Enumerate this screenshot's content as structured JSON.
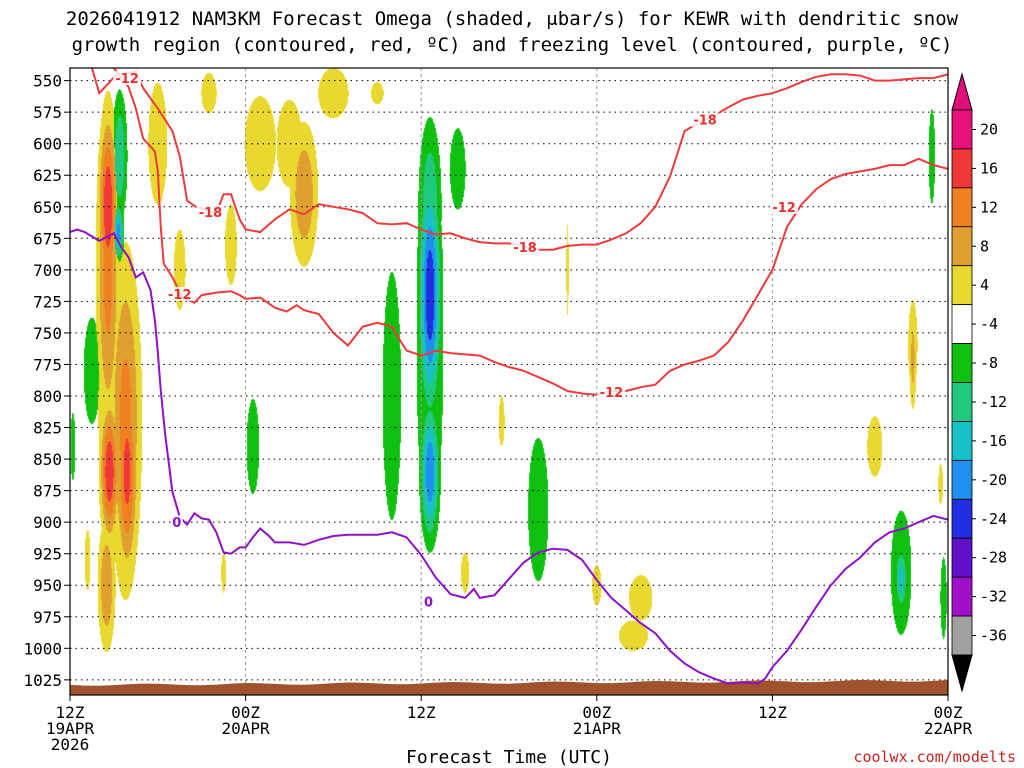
{
  "chart_data": {
    "type": "heatmap",
    "title_line1": "2026041912 NAM3KM Forecast Omega (shaded, μbar/s) for KEWR with dendritic snow",
    "title_line2": "growth region (contoured, red, ºC) and freezing level (contoured, purple, ºC)",
    "xlabel": "Forecast Time (UTC)",
    "credit": "coolwx.com/modelts",
    "x_range_hours": [
      0,
      60
    ],
    "y_range_mb": [
      540,
      1037
    ],
    "y_ticks": [
      "550",
      "575",
      "600",
      "625",
      "650",
      "675",
      "700",
      "725",
      "750",
      "775",
      "800",
      "825",
      "850",
      "875",
      "900",
      "925",
      "950",
      "975",
      "1000",
      "1025"
    ],
    "x_ticks": [
      {
        "hour": 0,
        "line1": "12Z",
        "line2": "19APR",
        "line3": "2026"
      },
      {
        "hour": 12,
        "line1": "00Z",
        "line2": "20APR",
        "line3": ""
      },
      {
        "hour": 24,
        "line1": "12Z",
        "line2": "",
        "line3": ""
      },
      {
        "hour": 36,
        "line1": "00Z",
        "line2": "21APR",
        "line3": ""
      },
      {
        "hour": 48,
        "line1": "12Z",
        "line2": "",
        "line3": ""
      },
      {
        "hour": 60,
        "line1": "00Z",
        "line2": "22APR",
        "line3": ""
      }
    ],
    "colorbar": {
      "labels": [
        "20",
        "16",
        "12",
        "8",
        "4",
        "-4",
        "-8",
        "-12",
        "-16",
        "-20",
        "-24",
        "-28",
        "-32",
        "-36"
      ],
      "colors": [
        "#e8107a",
        "#f03838",
        "#f08020",
        "#e0a030",
        "#e8d830",
        "#ffffff",
        "#10c010",
        "#20c880",
        "#18c0c8",
        "#2090f0",
        "#2030e0",
        "#6010c8",
        "#a010c8",
        "#a0a0a0"
      ],
      "top_arrow_color": "#e0107a",
      "bottom_arrow_color": "#000000"
    },
    "ground_color": "#a0522d",
    "omega_blobs": [
      {
        "hour": 2.6,
        "mb": 740,
        "rh": 1.2,
        "rmb": 190,
        "omega": 8
      },
      {
        "hour": 2.6,
        "mb": 700,
        "rh": 0.9,
        "rmb": 150,
        "omega": 14
      },
      {
        "hour": 2.6,
        "mb": 650,
        "rh": 0.7,
        "rmb": 80,
        "omega": 20
      },
      {
        "hour": 2.7,
        "mb": 860,
        "rh": 0.7,
        "rmb": 60,
        "omega": 20
      },
      {
        "hour": 3.8,
        "mb": 820,
        "rh": 1.2,
        "rmb": 150,
        "omega": 14
      },
      {
        "hour": 3.9,
        "mb": 860,
        "rh": 0.8,
        "rmb": 90,
        "omega": 18
      },
      {
        "hour": 2.5,
        "mb": 950,
        "rh": 0.7,
        "rmb": 60,
        "omega": 12
      },
      {
        "hour": 3.4,
        "mb": 610,
        "rh": 0.6,
        "rmb": 60,
        "omega": -12
      },
      {
        "hour": 3.3,
        "mb": 670,
        "rh": 0.4,
        "rmb": 25,
        "omega": -18
      },
      {
        "hour": 6.0,
        "mb": 600,
        "rh": 1.2,
        "rmb": 90,
        "omega": 6
      },
      {
        "hour": 7.5,
        "mb": 700,
        "rh": 1.0,
        "rmb": 80,
        "omega": 5
      },
      {
        "hour": 1.5,
        "mb": 780,
        "rh": 0.8,
        "rmb": 60,
        "omega": -8
      },
      {
        "hour": 1.2,
        "mb": 930,
        "rh": 0.5,
        "rmb": 60,
        "omega": 5
      },
      {
        "hour": 0.2,
        "mb": 840,
        "rh": 0.3,
        "rmb": 50,
        "omega": -6
      },
      {
        "hour": 9.5,
        "mb": 560,
        "rh": 1.3,
        "rmb": 40,
        "omega": 5
      },
      {
        "hour": 13.0,
        "mb": 600,
        "rh": 2.0,
        "rmb": 70,
        "omega": 6
      },
      {
        "hour": 16.0,
        "mb": 640,
        "rh": 1.1,
        "rmb": 65,
        "omega": 12
      },
      {
        "hour": 15.0,
        "mb": 600,
        "rh": 1.4,
        "rmb": 55,
        "omega": 7
      },
      {
        "hour": 11.0,
        "mb": 680,
        "rh": 1.0,
        "rmb": 80,
        "omega": 5
      },
      {
        "hour": 18.0,
        "mb": 560,
        "rh": 2.6,
        "rmb": 50,
        "omega": 5
      },
      {
        "hour": 21.0,
        "mb": 560,
        "rh": 1.5,
        "rmb": 30,
        "omega": 4.5
      },
      {
        "hour": 12.5,
        "mb": 840,
        "rh": 0.8,
        "rmb": 70,
        "omega": -6
      },
      {
        "hour": 10.5,
        "mb": 940,
        "rh": 0.4,
        "rmb": 40,
        "omega": 5
      },
      {
        "hour": 24.6,
        "mb": 760,
        "rh": 1.3,
        "rmb": 220,
        "omega": -8
      },
      {
        "hour": 24.6,
        "mb": 720,
        "rh": 0.8,
        "rmb": 100,
        "omega": -24
      },
      {
        "hour": 24.6,
        "mb": 650,
        "rh": 0.9,
        "rmb": 80,
        "omega": -12
      },
      {
        "hour": 24.6,
        "mb": 860,
        "rh": 0.7,
        "rmb": 60,
        "omega": -20
      },
      {
        "hour": 22.0,
        "mb": 800,
        "rh": 0.9,
        "rmb": 140,
        "omega": -8
      },
      {
        "hour": 26.5,
        "mb": 620,
        "rh": 1.0,
        "rmb": 60,
        "omega": -6
      },
      {
        "hour": 32.0,
        "mb": 890,
        "rh": 1.1,
        "rmb": 90,
        "omega": -7
      },
      {
        "hour": 29.5,
        "mb": 820,
        "rh": 0.5,
        "rmb": 50,
        "omega": 5
      },
      {
        "hour": 27.0,
        "mb": 940,
        "rh": 0.7,
        "rmb": 40,
        "omega": 5
      },
      {
        "hour": 34.0,
        "mb": 700,
        "rh": 0.2,
        "rmb": 90,
        "omega": 5
      },
      {
        "hour": 36.0,
        "mb": 950,
        "rh": 0.8,
        "rmb": 40,
        "omega": 5
      },
      {
        "hour": 39.0,
        "mb": 960,
        "rh": 2.0,
        "rmb": 45,
        "omega": 5
      },
      {
        "hour": 38.5,
        "mb": 990,
        "rh": 2.5,
        "rmb": 30,
        "omega": 5
      },
      {
        "hour": 55.0,
        "mb": 840,
        "rh": 1.3,
        "rmb": 60,
        "omega": 5
      },
      {
        "hour": 57.6,
        "mb": 760,
        "rh": 0.8,
        "rmb": 90,
        "omega": 5
      },
      {
        "hour": 57.6,
        "mb": 770,
        "rh": 0.3,
        "rmb": 50,
        "omega": 10
      },
      {
        "hour": 56.8,
        "mb": 940,
        "rh": 1.0,
        "rmb": 70,
        "omega": -8
      },
      {
        "hour": 56.8,
        "mb": 945,
        "rh": 0.5,
        "rmb": 30,
        "omega": -14
      },
      {
        "hour": 59.5,
        "mb": 870,
        "rh": 0.4,
        "rmb": 40,
        "omega": 5
      },
      {
        "hour": 59.7,
        "mb": 960,
        "rh": 0.4,
        "rmb": 60,
        "omega": -6
      },
      {
        "hour": 58.9,
        "mb": 610,
        "rh": 0.4,
        "rmb": 70,
        "omega": -6
      }
    ],
    "dendritic_top_line": {
      "label": "-18",
      "points": [
        [
          1.5,
          540
        ],
        [
          2.0,
          560
        ],
        [
          3.2,
          545
        ],
        [
          4.5,
          543
        ],
        [
          5.0,
          556
        ],
        [
          6.0,
          572
        ],
        [
          7.0,
          590
        ],
        [
          7.5,
          610
        ],
        [
          8.0,
          645
        ],
        [
          8.6,
          650
        ],
        [
          9.2,
          652
        ],
        [
          10.0,
          655
        ],
        [
          10.5,
          640
        ],
        [
          11.0,
          640
        ],
        [
          11.6,
          660
        ],
        [
          12.0,
          668
        ],
        [
          13.0,
          670
        ],
        [
          14.0,
          660
        ],
        [
          15.0,
          652
        ],
        [
          16.0,
          656
        ],
        [
          17.0,
          648
        ],
        [
          18.0,
          650
        ],
        [
          19.0,
          652
        ],
        [
          20.0,
          655
        ],
        [
          21.0,
          663
        ],
        [
          22.0,
          664
        ],
        [
          23.0,
          663
        ],
        [
          24.0,
          668
        ],
        [
          25.0,
          672
        ],
        [
          26.0,
          671
        ],
        [
          27.0,
          675
        ],
        [
          28.0,
          678
        ],
        [
          29.0,
          679
        ],
        [
          30.0,
          679
        ],
        [
          31.0,
          681
        ],
        [
          32.0,
          684
        ],
        [
          33.0,
          684
        ],
        [
          34.0,
          681
        ],
        [
          35.0,
          680
        ],
        [
          36.0,
          680
        ],
        [
          37.0,
          676
        ],
        [
          38.0,
          671
        ],
        [
          39.0,
          663
        ],
        [
          40.0,
          650
        ],
        [
          41.0,
          626
        ],
        [
          42.0,
          590
        ],
        [
          43.0,
          583
        ],
        [
          44.0,
          578
        ],
        [
          45.0,
          571
        ],
        [
          46.0,
          565
        ],
        [
          47.0,
          562
        ],
        [
          48.0,
          560
        ],
        [
          49.0,
          556
        ],
        [
          50.0,
          551
        ],
        [
          51.0,
          547
        ],
        [
          52.0,
          545
        ],
        [
          53.0,
          545
        ],
        [
          54.0,
          546
        ],
        [
          55.0,
          550
        ],
        [
          56.0,
          550
        ],
        [
          57.0,
          549
        ],
        [
          58.0,
          548
        ],
        [
          59.0,
          548
        ],
        [
          60.0,
          545
        ]
      ]
    },
    "dendritic_bottom_line": {
      "label": "-12",
      "points": [
        [
          3.0,
          540
        ],
        [
          4.0,
          555
        ],
        [
          4.5,
          572
        ],
        [
          5.0,
          596
        ],
        [
          5.8,
          606
        ],
        [
          6.0,
          622
        ],
        [
          6.2,
          665
        ],
        [
          6.4,
          695
        ],
        [
          7.0,
          706
        ],
        [
          7.7,
          722
        ],
        [
          8.5,
          726
        ],
        [
          9.0,
          720
        ],
        [
          10.0,
          718
        ],
        [
          11.0,
          717
        ],
        [
          11.6,
          720
        ],
        [
          12.0,
          723
        ],
        [
          13.0,
          722
        ],
        [
          14.0,
          730
        ],
        [
          14.8,
          733
        ],
        [
          15.5,
          728
        ],
        [
          16.0,
          732
        ],
        [
          17.0,
          735
        ],
        [
          18.0,
          750
        ],
        [
          19.0,
          760
        ],
        [
          20.0,
          745
        ],
        [
          21.0,
          742
        ],
        [
          22.0,
          745
        ],
        [
          22.5,
          755
        ],
        [
          23.0,
          764
        ],
        [
          24.0,
          768
        ],
        [
          25.0,
          764
        ],
        [
          26.0,
          766
        ],
        [
          27.0,
          767
        ],
        [
          28.0,
          768
        ],
        [
          29.0,
          773
        ],
        [
          30.0,
          777
        ],
        [
          31.0,
          780
        ],
        [
          32.0,
          785
        ],
        [
          33.0,
          790
        ],
        [
          34.0,
          796
        ],
        [
          35.0,
          798
        ],
        [
          36.0,
          799
        ],
        [
          37.0,
          796
        ],
        [
          38.0,
          796
        ],
        [
          39.0,
          793
        ],
        [
          40.0,
          791
        ],
        [
          41.0,
          780
        ],
        [
          42.0,
          775
        ],
        [
          43.0,
          772
        ],
        [
          44.0,
          768
        ],
        [
          45.0,
          757
        ],
        [
          46.0,
          740
        ],
        [
          47.0,
          720
        ],
        [
          48.0,
          700
        ],
        [
          49.0,
          666
        ],
        [
          50.0,
          648
        ],
        [
          51.0,
          636
        ],
        [
          52.0,
          628
        ],
        [
          53.0,
          624
        ],
        [
          54.0,
          622
        ],
        [
          55.0,
          620
        ],
        [
          56.0,
          617
        ],
        [
          57.0,
          617
        ],
        [
          58.0,
          612
        ],
        [
          59.0,
          617
        ],
        [
          60.0,
          620
        ]
      ]
    },
    "freezing_line": {
      "label": "0",
      "points": [
        [
          0.0,
          670
        ],
        [
          0.5,
          668
        ],
        [
          1.0,
          670
        ],
        [
          2.0,
          677
        ],
        [
          3.0,
          671
        ],
        [
          3.5,
          682
        ],
        [
          4.0,
          690
        ],
        [
          4.5,
          706
        ],
        [
          5.0,
          702
        ],
        [
          5.5,
          716
        ],
        [
          5.8,
          740
        ],
        [
          6.0,
          765
        ],
        [
          6.2,
          795
        ],
        [
          6.5,
          830
        ],
        [
          7.0,
          876
        ],
        [
          7.5,
          896
        ],
        [
          8.0,
          902
        ],
        [
          8.5,
          893
        ],
        [
          9.0,
          897
        ],
        [
          9.5,
          898
        ],
        [
          10.0,
          908
        ],
        [
          10.5,
          924
        ],
        [
          11.0,
          925
        ],
        [
          11.6,
          920
        ],
        [
          12.0,
          920
        ],
        [
          12.5,
          912
        ],
        [
          13.0,
          905
        ],
        [
          13.6,
          911
        ],
        [
          14.0,
          916
        ],
        [
          15.0,
          916
        ],
        [
          16.0,
          918
        ],
        [
          17.0,
          914
        ],
        [
          18.0,
          911
        ],
        [
          19.0,
          910
        ],
        [
          20.0,
          910
        ],
        [
          21.0,
          910
        ],
        [
          22.0,
          908
        ],
        [
          23.0,
          912
        ],
        [
          24.0,
          926
        ],
        [
          25.0,
          944
        ],
        [
          26.0,
          957
        ],
        [
          27.0,
          960
        ],
        [
          27.6,
          953
        ],
        [
          28.0,
          960
        ],
        [
          29.0,
          958
        ],
        [
          30.0,
          945
        ],
        [
          31.0,
          932
        ],
        [
          32.0,
          924
        ],
        [
          33.0,
          921
        ],
        [
          34.0,
          922
        ],
        [
          35.0,
          930
        ],
        [
          36.0,
          946
        ],
        [
          37.0,
          960
        ],
        [
          38.0,
          970
        ],
        [
          39.0,
          980
        ],
        [
          40.0,
          988
        ],
        [
          41.0,
          1002
        ],
        [
          42.0,
          1012
        ],
        [
          43.0,
          1019
        ],
        [
          44.0,
          1024
        ],
        [
          45.0,
          1028
        ],
        [
          46.0,
          1027
        ],
        [
          47.0,
          1028
        ],
        [
          47.5,
          1024
        ],
        [
          48.0,
          1015
        ],
        [
          49.0,
          1002
        ],
        [
          50.0,
          985
        ],
        [
          51.0,
          967
        ],
        [
          52.0,
          950
        ],
        [
          53.0,
          937
        ],
        [
          54.0,
          928
        ],
        [
          55.0,
          916
        ],
        [
          56.0,
          908
        ],
        [
          57.0,
          905
        ],
        [
          58.0,
          900
        ],
        [
          59.0,
          895
        ],
        [
          60.0,
          898
        ]
      ]
    },
    "contour_labels": [
      {
        "text": "-12",
        "hour": 3.9,
        "mb": 548,
        "color": "red"
      },
      {
        "text": "-18",
        "hour": 9.6,
        "mb": 654,
        "color": "red"
      },
      {
        "text": "-12",
        "hour": 7.5,
        "mb": 719,
        "color": "red"
      },
      {
        "text": "-18",
        "hour": 31.1,
        "mb": 682,
        "color": "red"
      },
      {
        "text": "-12",
        "hour": 37.0,
        "mb": 797,
        "color": "red"
      },
      {
        "text": "-18",
        "hour": 43.4,
        "mb": 581,
        "color": "red"
      },
      {
        "text": "-12",
        "hour": 48.8,
        "mb": 650,
        "color": "red"
      },
      {
        "text": "0",
        "hour": 7.3,
        "mb": 900,
        "color": "purple"
      },
      {
        "text": "0",
        "hour": 24.5,
        "mb": 963,
        "color": "purple"
      }
    ]
  }
}
